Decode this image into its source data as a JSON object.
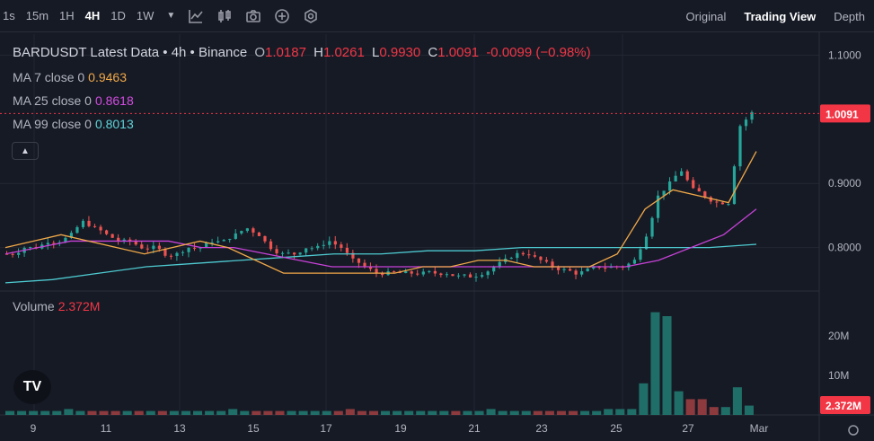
{
  "toolbar": {
    "timeframes": [
      "1s",
      "15m",
      "1H",
      "4H",
      "1D",
      "1W"
    ],
    "active_timeframe": "4H",
    "views": [
      "Original",
      "Trading View",
      "Depth"
    ],
    "active_view": "Trading View"
  },
  "legend": {
    "pair_title": "BARDUSDT Latest Data • 4h • Binance",
    "open_label": "O",
    "open": "1.0187",
    "high_label": "H",
    "high": "1.0261",
    "low_label": "L",
    "low": "0.9930",
    "close_label": "C",
    "close": "1.0091",
    "change": "-0.0099 (−0.98%)",
    "ma7_label": "MA 7 close 0",
    "ma7_value": "0.9463",
    "ma25_label": "MA 25 close 0",
    "ma25_value": "0.8618",
    "ma99_label": "MA 99 close 0",
    "ma99_value": "0.8013",
    "volume_label": "Volume",
    "volume_value": "2.372M"
  },
  "colors": {
    "background": "#161a25",
    "up": "#26a69a",
    "down": "#ef5350",
    "ma7": "#f0a848",
    "ma25": "#c742d8",
    "ma99": "#4ecad0"
  },
  "price_axis": {
    "ticks": [
      "1.1000",
      "0.9000",
      "0.8000"
    ],
    "current": "1.0091"
  },
  "volume_axis": {
    "ticks": [
      "20M",
      "10M"
    ],
    "current": "2.372M"
  },
  "time_axis": {
    "ticks": [
      "9",
      "11",
      "13",
      "15",
      "17",
      "19",
      "21",
      "23",
      "25",
      "27",
      "Mar"
    ]
  },
  "chart_data": {
    "type": "candlestick",
    "interval": "4h",
    "price_range": [
      0.735,
      1.13
    ],
    "volume_range": [
      0,
      30
    ],
    "close_path": [
      0.79,
      0.8,
      0.8,
      0.81,
      0.81,
      0.82,
      0.84,
      0.83,
      0.82,
      0.81,
      0.81,
      0.8,
      0.8,
      0.79,
      0.79,
      0.8,
      0.8,
      0.81,
      0.81,
      0.82,
      0.83,
      0.82,
      0.8,
      0.79,
      0.79,
      0.8,
      0.8,
      0.81,
      0.8,
      0.78,
      0.77,
      0.76,
      0.76,
      0.76,
      0.76,
      0.76,
      0.76,
      0.76,
      0.755,
      0.755,
      0.76,
      0.77,
      0.78,
      0.79,
      0.79,
      0.78,
      0.77,
      0.765,
      0.76,
      0.765,
      0.77,
      0.77,
      0.77,
      0.78,
      0.82,
      0.88,
      0.9,
      0.92,
      0.89,
      0.88,
      0.87,
      0.87,
      0.99,
      1.01
    ],
    "volume_path": [
      1,
      1,
      1,
      1,
      1,
      1.5,
      1,
      1,
      1,
      1,
      1,
      1,
      1,
      1,
      1,
      1,
      1,
      1,
      1,
      1.5,
      1,
      1,
      1,
      1,
      1,
      1,
      1,
      1,
      1,
      1.5,
      1,
      1,
      1,
      1,
      1,
      1,
      1,
      1,
      1,
      1,
      1,
      1.5,
      1,
      1,
      1,
      1,
      1,
      1,
      1,
      1,
      1,
      1.5,
      1.5,
      1.5,
      8,
      26,
      25,
      6,
      4,
      4,
      2,
      2,
      7,
      2.372
    ],
    "ma7_path": [
      0.8,
      0.81,
      0.82,
      0.81,
      0.8,
      0.79,
      0.8,
      0.81,
      0.8,
      0.78,
      0.76,
      0.76,
      0.76,
      0.76,
      0.76,
      0.77,
      0.77,
      0.78,
      0.78,
      0.77,
      0.77,
      0.77,
      0.79,
      0.86,
      0.89,
      0.88,
      0.87,
      0.95
    ],
    "ma25_path": [
      0.79,
      0.8,
      0.81,
      0.81,
      0.81,
      0.81,
      0.8,
      0.8,
      0.79,
      0.78,
      0.77,
      0.77,
      0.77,
      0.77,
      0.77,
      0.77,
      0.77,
      0.77,
      0.77,
      0.77,
      0.78,
      0.8,
      0.82,
      0.86
    ],
    "ma99_path": [
      0.745,
      0.75,
      0.76,
      0.77,
      0.775,
      0.78,
      0.785,
      0.79,
      0.79,
      0.795,
      0.795,
      0.8,
      0.8,
      0.8,
      0.8,
      0.8,
      0.805
    ]
  }
}
